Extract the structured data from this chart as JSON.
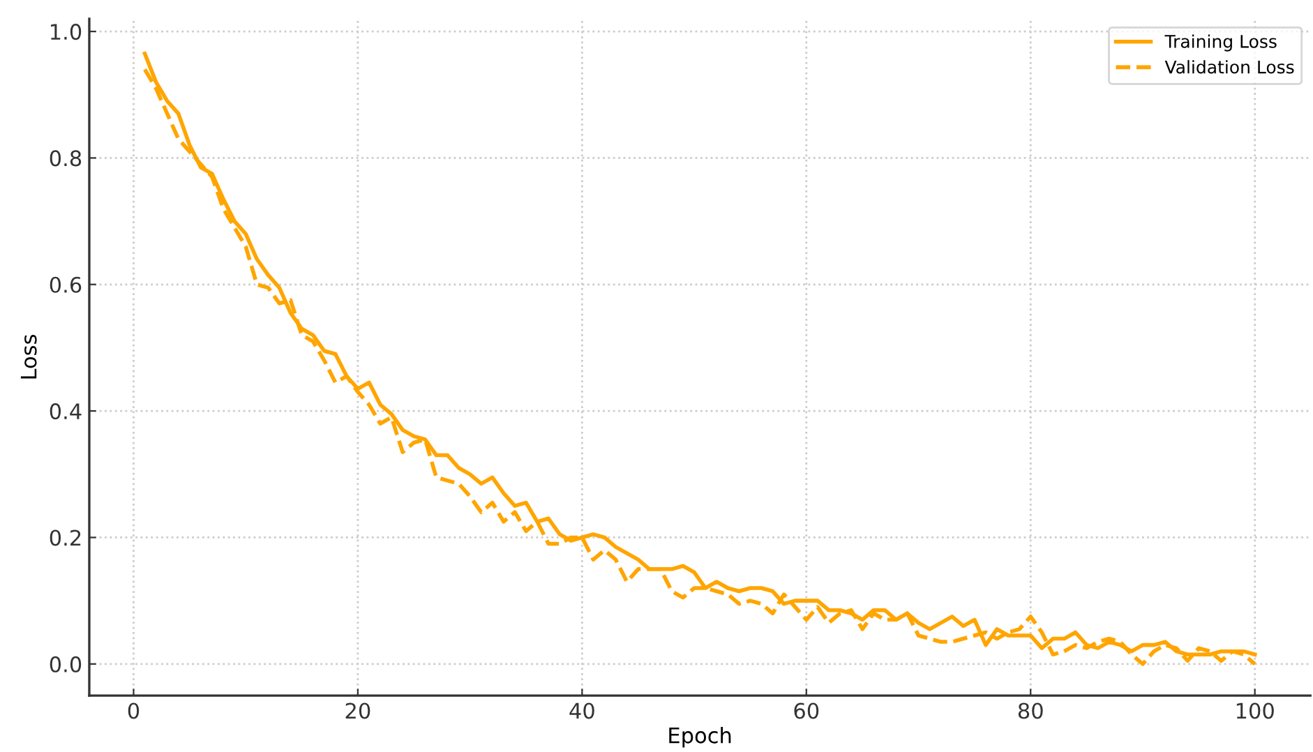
{
  "chart_data": {
    "type": "line",
    "xlabel": "Epoch",
    "ylabel": "Loss",
    "x": [
      1,
      2,
      3,
      4,
      5,
      6,
      7,
      8,
      9,
      10,
      11,
      12,
      13,
      14,
      15,
      16,
      17,
      18,
      19,
      20,
      21,
      22,
      23,
      24,
      25,
      26,
      27,
      28,
      29,
      30,
      31,
      32,
      33,
      34,
      35,
      36,
      37,
      38,
      39,
      40,
      41,
      42,
      43,
      44,
      45,
      46,
      47,
      48,
      49,
      50,
      51,
      52,
      53,
      54,
      55,
      56,
      57,
      58,
      59,
      60,
      61,
      62,
      63,
      64,
      65,
      66,
      67,
      68,
      69,
      70,
      71,
      72,
      73,
      74,
      75,
      76,
      77,
      78,
      79,
      80,
      81,
      82,
      83,
      84,
      85,
      86,
      87,
      88,
      89,
      90,
      91,
      92,
      93,
      94,
      95,
      96,
      97,
      98,
      99,
      100
    ],
    "series": [
      {
        "name": "Training Loss",
        "color": "#ffa500",
        "line_style": "solid",
        "values": [
          0.965,
          0.92,
          0.89,
          0.87,
          0.82,
          0.785,
          0.775,
          0.735,
          0.7,
          0.68,
          0.64,
          0.615,
          0.595,
          0.555,
          0.53,
          0.52,
          0.495,
          0.49,
          0.455,
          0.435,
          0.445,
          0.41,
          0.395,
          0.37,
          0.36,
          0.355,
          0.33,
          0.33,
          0.31,
          0.3,
          0.285,
          0.295,
          0.27,
          0.25,
          0.255,
          0.225,
          0.23,
          0.205,
          0.195,
          0.2,
          0.205,
          0.2,
          0.185,
          0.175,
          0.165,
          0.15,
          0.15,
          0.15,
          0.155,
          0.145,
          0.12,
          0.13,
          0.12,
          0.115,
          0.12,
          0.12,
          0.115,
          0.095,
          0.1,
          0.1,
          0.1,
          0.085,
          0.085,
          0.08,
          0.07,
          0.085,
          0.085,
          0.07,
          0.08,
          0.065,
          0.055,
          0.065,
          0.075,
          0.06,
          0.07,
          0.03,
          0.055,
          0.045,
          0.045,
          0.045,
          0.025,
          0.04,
          0.04,
          0.05,
          0.03,
          0.025,
          0.035,
          0.03,
          0.02,
          0.03,
          0.03,
          0.035,
          0.02,
          0.015,
          0.015,
          0.015,
          0.02,
          0.02,
          0.02,
          0.015
        ]
      },
      {
        "name": "Validation Loss",
        "color": "#ffa500",
        "line_style": "dashed",
        "values": [
          0.94,
          0.91,
          0.87,
          0.83,
          0.81,
          0.79,
          0.77,
          0.72,
          0.69,
          0.66,
          0.6,
          0.595,
          0.57,
          0.575,
          0.52,
          0.51,
          0.48,
          0.445,
          0.455,
          0.43,
          0.41,
          0.38,
          0.39,
          0.335,
          0.35,
          0.355,
          0.295,
          0.29,
          0.285,
          0.265,
          0.24,
          0.255,
          0.225,
          0.24,
          0.21,
          0.225,
          0.19,
          0.19,
          0.2,
          0.2,
          0.165,
          0.18,
          0.165,
          0.13,
          0.15,
          0.15,
          0.15,
          0.115,
          0.105,
          0.12,
          0.12,
          0.115,
          0.11,
          0.095,
          0.1,
          0.095,
          0.08,
          0.11,
          0.09,
          0.07,
          0.09,
          0.065,
          0.08,
          0.085,
          0.055,
          0.08,
          0.07,
          0.07,
          0.08,
          0.045,
          0.04,
          0.035,
          0.035,
          0.04,
          0.045,
          0.05,
          0.04,
          0.05,
          0.055,
          0.075,
          0.05,
          0.015,
          0.02,
          0.03,
          0.025,
          0.035,
          0.04,
          0.035,
          0.015,
          0.0,
          0.02,
          0.03,
          0.025,
          0.005,
          0.025,
          0.02,
          0.005,
          0.02,
          0.015,
          0.0
        ]
      }
    ],
    "xlim": [
      -3.95,
      104.95
    ],
    "ylim": [
      -0.05,
      1.02
    ],
    "xticks": [
      0,
      20,
      40,
      60,
      80,
      100
    ],
    "yticks": [
      {
        "value": 0,
        "label": "0.0"
      },
      {
        "value": 0.2,
        "label": "0.2"
      },
      {
        "value": 0.4,
        "label": "0.4"
      },
      {
        "value": 0.6,
        "label": "0.6"
      },
      {
        "value": 0.8,
        "label": "0.8"
      },
      {
        "value": 1.0,
        "label": "1.0"
      }
    ],
    "grid": true,
    "legend": "top right",
    "marker": "none"
  }
}
